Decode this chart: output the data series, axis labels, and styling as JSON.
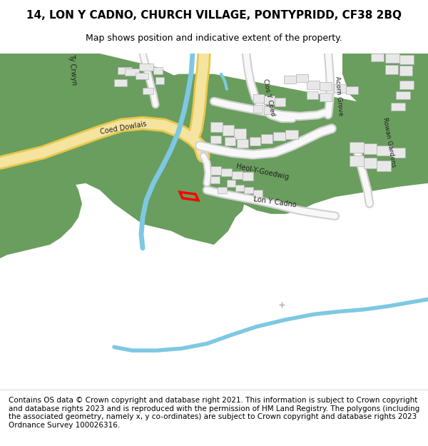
{
  "title": "14, LON Y CADNO, CHURCH VILLAGE, PONTYPRIDD, CF38 2BQ",
  "subtitle": "Map shows position and indicative extent of the property.",
  "footer": "Contains OS data © Crown copyright and database right 2021. This information is subject to Crown copyright and database rights 2023 and is reproduced with the permission of HM Land Registry. The polygons (including the associated geometry, namely x, y co-ordinates) are subject to Crown copyright and database rights 2023 Ordnance Survey 100026316.",
  "bg_color": "#ffffff",
  "map_bg": "#f2f2f2",
  "green_color": "#6a9e5e",
  "road_yellow": "#f5e4a0",
  "road_outline": "#e8c84a",
  "building_color": "#e8e8e8",
  "building_edge": "#b0b0b0",
  "water_color": "#7ec8e3",
  "plot_color": "#ff0000",
  "title_fontsize": 11,
  "subtitle_fontsize": 9,
  "footer_fontsize": 7.5,
  "label_fontsize": 7,
  "label_fontsize_small": 6.5
}
